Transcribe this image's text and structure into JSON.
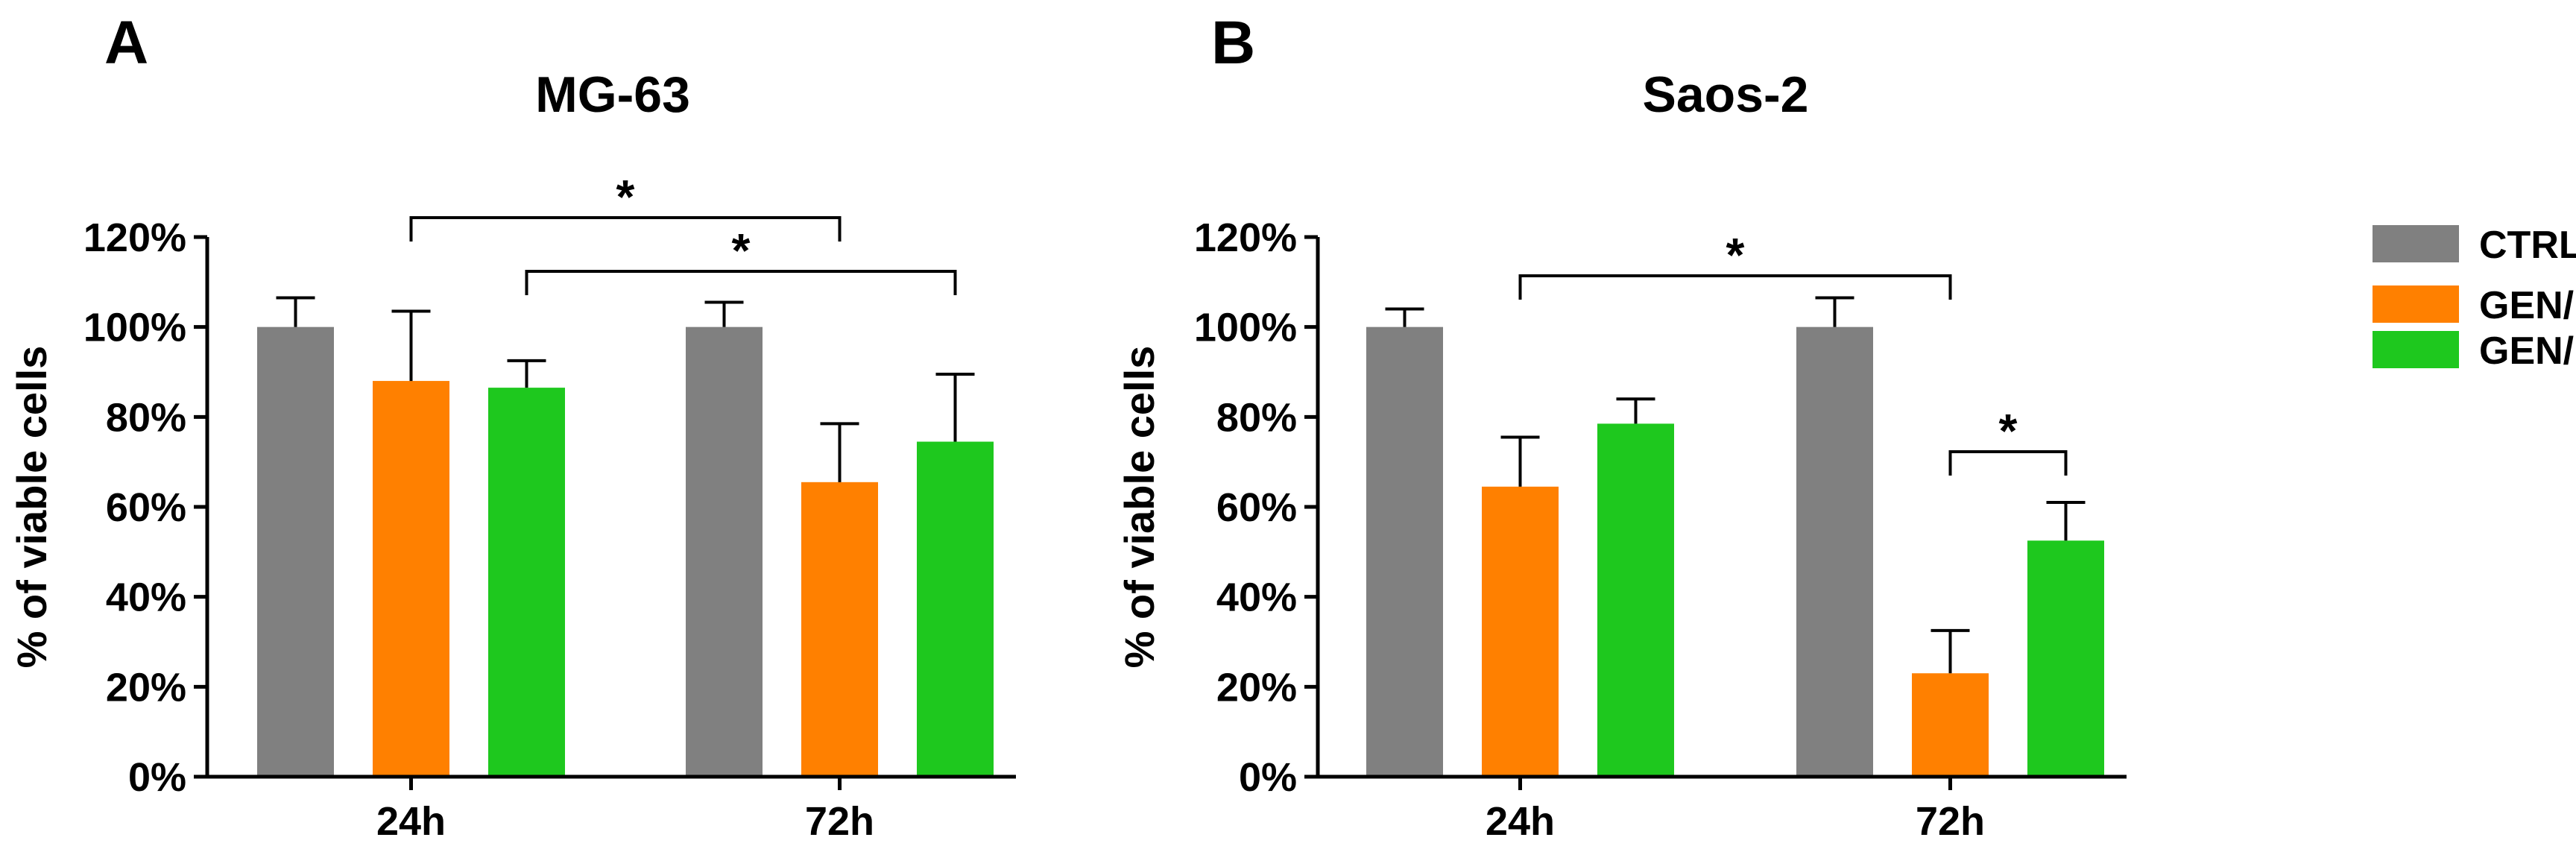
{
  "panels": [
    {
      "letter": "A"
    },
    {
      "letter": "B"
    }
  ],
  "legend": {
    "items": [
      {
        "label": "CTRL",
        "color": "#808080"
      },
      {
        "label": "GEN/PBS",
        "color": "#ff8000"
      },
      {
        "label": "GEN/EtOH",
        "color": "#1ec81e"
      }
    ]
  },
  "chart_data": [
    {
      "type": "bar",
      "title": "MG-63",
      "panel": "A",
      "xlabel": "",
      "ylabel": "% of viable cells",
      "ylim": [
        0,
        120
      ],
      "yticks": [
        "0%",
        "20%",
        "40%",
        "60%",
        "80%",
        "100%",
        "120%"
      ],
      "categories": [
        "24h",
        "72h"
      ],
      "series": [
        {
          "name": "CTRL",
          "values": [
            100,
            100
          ],
          "errors": [
            6.5,
            5.5
          ]
        },
        {
          "name": "GEN/PBS",
          "values": [
            88,
            65.5
          ],
          "errors": [
            15.5,
            13
          ]
        },
        {
          "name": "GEN/EtOH",
          "values": [
            86.5,
            74.5
          ],
          "errors": [
            6,
            15
          ]
        }
      ],
      "significance": [
        {
          "from": "24h GEN/PBS",
          "to": "72h GEN/PBS",
          "label": "*"
        },
        {
          "from": "24h GEN/EtOH",
          "to": "72h GEN/EtOH",
          "label": "*"
        }
      ]
    },
    {
      "type": "bar",
      "title": "Saos-2",
      "panel": "B",
      "xlabel": "",
      "ylabel": "% of viable cells",
      "ylim": [
        0,
        120
      ],
      "yticks": [
        "0%",
        "20%",
        "40%",
        "60%",
        "80%",
        "100%",
        "120%"
      ],
      "categories": [
        "24h",
        "72h"
      ],
      "series": [
        {
          "name": "CTRL",
          "values": [
            100,
            100
          ],
          "errors": [
            4,
            6.5
          ]
        },
        {
          "name": "GEN/PBS",
          "values": [
            64.5,
            23
          ],
          "errors": [
            11,
            9.5
          ]
        },
        {
          "name": "GEN/EtOH",
          "values": [
            78.5,
            52.5
          ],
          "errors": [
            5.5,
            8.5
          ]
        }
      ],
      "significance": [
        {
          "from": "24h GEN/PBS",
          "to": "72h GEN/PBS",
          "label": "*"
        },
        {
          "from": "72h GEN/PBS",
          "to": "72h GEN/EtOH",
          "label": "*"
        }
      ]
    }
  ]
}
